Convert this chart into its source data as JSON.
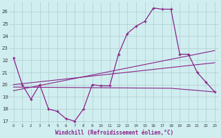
{
  "title": "",
  "xlabel": "Windchill (Refroidissement éolien,°C)",
  "bg_color": "#d0eef0",
  "grid_color": "#b0cccc",
  "line_color": "#882288",
  "axis_bar_color": "#882288",
  "xlim": [
    -0.5,
    23.5
  ],
  "ylim": [
    16.8,
    26.8
  ],
  "yticks": [
    17,
    18,
    19,
    20,
    21,
    22,
    23,
    24,
    25,
    26
  ],
  "xticks": [
    0,
    1,
    2,
    3,
    4,
    5,
    6,
    7,
    8,
    9,
    10,
    11,
    12,
    13,
    14,
    15,
    16,
    17,
    18,
    19,
    20,
    21,
    22,
    23
  ],
  "series_main": {
    "x": [
      0,
      1,
      2,
      3,
      4,
      5,
      6,
      7,
      8,
      9,
      10,
      11,
      12,
      13,
      14,
      15,
      16,
      17,
      18,
      19,
      20,
      21,
      22,
      23
    ],
    "y": [
      22.2,
      20.0,
      18.8,
      20.0,
      18.0,
      17.8,
      17.2,
      17.0,
      18.0,
      20.0,
      19.9,
      19.9,
      22.5,
      24.2,
      24.8,
      25.2,
      26.3,
      26.2,
      26.2,
      22.5,
      22.5,
      21.0,
      20.2,
      19.4
    ]
  },
  "series_line1": {
    "x": [
      0,
      23
    ],
    "y": [
      19.5,
      22.8
    ]
  },
  "series_line2": {
    "x": [
      0,
      23
    ],
    "y": [
      20.0,
      21.8
    ]
  },
  "series_line3": {
    "x": [
      0,
      18,
      23
    ],
    "y": [
      19.8,
      19.7,
      19.4
    ]
  }
}
